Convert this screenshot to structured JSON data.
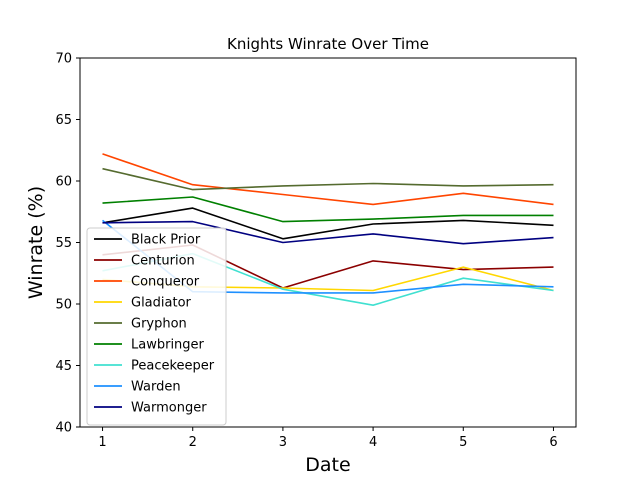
{
  "chart_data": {
    "type": "line",
    "title": "Knights Winrate Over Time",
    "xlabel": "Date",
    "ylabel": "Winrate (%)",
    "x": [
      1,
      2,
      3,
      4,
      5,
      6
    ],
    "xlim": [
      0.75,
      6.25
    ],
    "ylim": [
      40,
      70
    ],
    "yticks": [
      40,
      45,
      50,
      55,
      60,
      65,
      70
    ],
    "grid": false,
    "legend_position": "lower-left",
    "series": [
      {
        "name": "Black Prior",
        "color": "#000000",
        "values": [
          56.6,
          57.8,
          55.3,
          56.5,
          56.8,
          56.4
        ]
      },
      {
        "name": "Centurion",
        "color": "#8b0000",
        "values": [
          54.0,
          54.8,
          51.3,
          53.5,
          52.8,
          53.0
        ]
      },
      {
        "name": "Conqueror",
        "color": "#ff4500",
        "values": [
          62.2,
          59.7,
          58.9,
          58.1,
          59.0,
          58.1
        ]
      },
      {
        "name": "Gladiator",
        "color": "#ffd700",
        "values": [
          52.0,
          51.4,
          51.3,
          51.1,
          53.0,
          51.1
        ]
      },
      {
        "name": "Gryphon",
        "color": "#556b2f",
        "values": [
          61.0,
          59.3,
          59.6,
          59.8,
          59.6,
          59.7
        ]
      },
      {
        "name": "Lawbringer",
        "color": "#008000",
        "values": [
          58.2,
          58.7,
          56.7,
          56.9,
          57.2,
          57.2
        ]
      },
      {
        "name": "Peacekeeper",
        "color": "#40e0d0",
        "values": [
          52.7,
          54.1,
          51.2,
          49.9,
          52.1,
          51.1
        ]
      },
      {
        "name": "Warden",
        "color": "#1e90ff",
        "values": [
          56.8,
          51.0,
          50.9,
          50.9,
          51.6,
          51.4
        ]
      },
      {
        "name": "Warmonger",
        "color": "#000080",
        "values": [
          56.6,
          56.7,
          55.0,
          55.7,
          54.9,
          55.4
        ]
      }
    ]
  }
}
